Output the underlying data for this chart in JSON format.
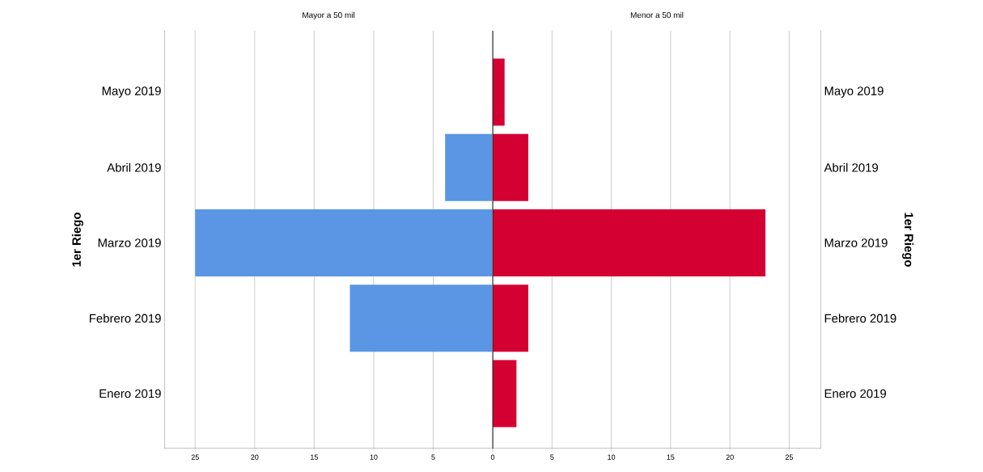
{
  "chart_data": [
    {
      "type": "bar",
      "orientation": "horizontal",
      "title": "Mayor a 50 mil",
      "ylabel": "1er Riego",
      "categories": [
        "Mayo 2019",
        "Abril 2019",
        "Marzo 2019",
        "Febrero 2019",
        "Enero 2019"
      ],
      "values": [
        null,
        4,
        25,
        12,
        null
      ],
      "color": "#5a96e3",
      "xlim": [
        27.6,
        0
      ],
      "xticks": [
        {
          "value": 0,
          "label": null
        },
        5,
        10,
        15,
        20,
        25
      ],
      "grid": "x"
    },
    {
      "type": "bar",
      "orientation": "horizontal",
      "title": "Menor a 50 mil",
      "ylabel": "1er Riego",
      "categories": [
        "Mayo 2019",
        "Abril 2019",
        "Marzo 2019",
        "Febrero 2019",
        "Enero 2019"
      ],
      "values": [
        1,
        3,
        23,
        3,
        2
      ],
      "color": "#d50032",
      "xlim": [
        0,
        27.7
      ],
      "xticks": [
        0,
        5,
        10,
        15,
        20,
        25
      ],
      "grid": "x"
    }
  ]
}
